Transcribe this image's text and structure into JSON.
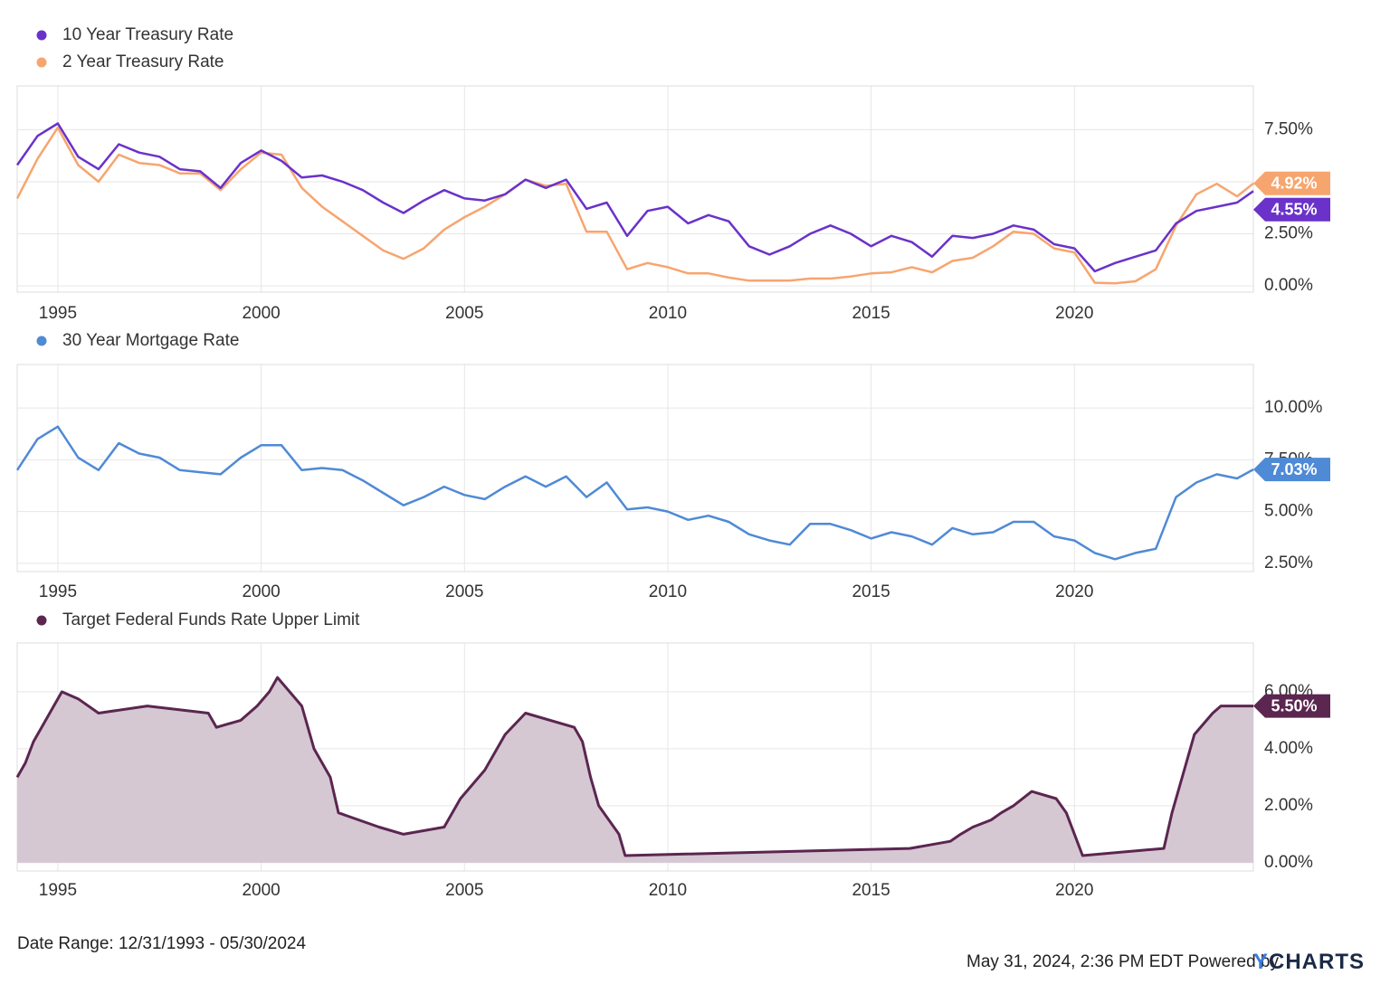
{
  "chart_data": [
    {
      "type": "line",
      "xlim": [
        1994.0,
        2024.4
      ],
      "xticks": [
        1995,
        2000,
        2005,
        2010,
        2015,
        2020
      ],
      "ylim": [
        -0.3,
        9.6
      ],
      "yticks": [
        {
          "value": 0,
          "label": "0.00%"
        },
        {
          "value": 2.5,
          "label": "2.50%"
        },
        {
          "value": 5,
          "label": "5.00%"
        },
        {
          "value": 7.5,
          "label": "7.50%"
        }
      ],
      "grid": true,
      "x": [
        1994.0,
        1994.5,
        1995.0,
        1995.5,
        1996.0,
        1996.5,
        1997.0,
        1997.5,
        1998.0,
        1998.5,
        1999.0,
        1999.5,
        2000.0,
        2000.5,
        2001.0,
        2001.5,
        2002.0,
        2002.5,
        2003.0,
        2003.5,
        2004.0,
        2004.5,
        2005.0,
        2005.5,
        2006.0,
        2006.5,
        2007.0,
        2007.5,
        2008.0,
        2008.5,
        2009.0,
        2009.5,
        2010.0,
        2010.5,
        2011.0,
        2011.5,
        2012.0,
        2012.5,
        2013.0,
        2013.5,
        2014.0,
        2014.5,
        2015.0,
        2015.5,
        2016.0,
        2016.5,
        2017.0,
        2017.5,
        2018.0,
        2018.5,
        2019.0,
        2019.5,
        2020.0,
        2020.5,
        2021.0,
        2021.5,
        2022.0,
        2022.5,
        2023.0,
        2023.5,
        2024.0,
        2024.4
      ],
      "series": [
        {
          "name": "10 Year Treasury Rate",
          "color": "#6a32c9",
          "values": [
            5.8,
            7.2,
            7.8,
            6.2,
            5.6,
            6.8,
            6.4,
            6.2,
            5.6,
            5.5,
            4.7,
            5.9,
            6.5,
            6.0,
            5.2,
            5.3,
            5.0,
            4.6,
            4.0,
            3.5,
            4.1,
            4.6,
            4.2,
            4.1,
            4.4,
            5.1,
            4.7,
            5.1,
            3.7,
            4.0,
            2.4,
            3.6,
            3.8,
            3.0,
            3.4,
            3.1,
            1.9,
            1.5,
            1.9,
            2.5,
            2.9,
            2.5,
            1.9,
            2.4,
            2.1,
            1.4,
            2.4,
            2.3,
            2.5,
            2.9,
            2.7,
            2.0,
            1.8,
            0.7,
            1.1,
            1.4,
            1.7,
            3.0,
            3.6,
            3.8,
            4.0,
            4.55
          ],
          "end_label": {
            "value": 4.55,
            "label": "4.55%"
          }
        },
        {
          "name": "2 Year Treasury Rate",
          "color": "#f7a56e",
          "values": [
            4.2,
            6.1,
            7.6,
            5.8,
            5.0,
            6.3,
            5.9,
            5.8,
            5.4,
            5.4,
            4.6,
            5.6,
            6.4,
            6.3,
            4.7,
            3.8,
            3.1,
            2.4,
            1.7,
            1.3,
            1.8,
            2.7,
            3.3,
            3.8,
            4.4,
            5.1,
            4.8,
            4.9,
            2.6,
            2.6,
            0.8,
            1.1,
            0.9,
            0.6,
            0.6,
            0.4,
            0.25,
            0.25,
            0.25,
            0.35,
            0.35,
            0.45,
            0.6,
            0.65,
            0.9,
            0.65,
            1.2,
            1.35,
            1.9,
            2.6,
            2.5,
            1.8,
            1.6,
            0.15,
            0.12,
            0.22,
            0.8,
            2.9,
            4.4,
            4.9,
            4.3,
            4.92
          ],
          "end_label": {
            "value": 4.92,
            "label": "4.92%"
          }
        }
      ]
    },
    {
      "type": "line",
      "xlim": [
        1994.0,
        2024.4
      ],
      "xticks": [
        1995,
        2000,
        2005,
        2010,
        2015,
        2020
      ],
      "ylim": [
        2.1,
        12.1
      ],
      "yticks": [
        {
          "value": 2.5,
          "label": "2.50%"
        },
        {
          "value": 5,
          "label": "5.00%"
        },
        {
          "value": 7.5,
          "label": "7.50%"
        },
        {
          "value": 10,
          "label": "10.00%"
        }
      ],
      "grid": true,
      "x": [
        1994.0,
        1994.5,
        1995.0,
        1995.5,
        1996.0,
        1996.5,
        1997.0,
        1997.5,
        1998.0,
        1998.5,
        1999.0,
        1999.5,
        2000.0,
        2000.5,
        2001.0,
        2001.5,
        2002.0,
        2002.5,
        2003.0,
        2003.5,
        2004.0,
        2004.5,
        2005.0,
        2005.5,
        2006.0,
        2006.5,
        2007.0,
        2007.5,
        2008.0,
        2008.5,
        2009.0,
        2009.5,
        2010.0,
        2010.5,
        2011.0,
        2011.5,
        2012.0,
        2012.5,
        2013.0,
        2013.5,
        2014.0,
        2014.5,
        2015.0,
        2015.5,
        2016.0,
        2016.5,
        2017.0,
        2017.5,
        2018.0,
        2018.5,
        2019.0,
        2019.5,
        2020.0,
        2020.5,
        2021.0,
        2021.5,
        2022.0,
        2022.5,
        2023.0,
        2023.5,
        2024.0,
        2024.4
      ],
      "series": [
        {
          "name": "30 Year Mortgage Rate",
          "color": "#4f8ad6",
          "values": [
            7.0,
            8.5,
            9.1,
            7.6,
            7.0,
            8.3,
            7.8,
            7.6,
            7.0,
            6.9,
            6.8,
            7.6,
            8.2,
            8.2,
            7.0,
            7.1,
            7.0,
            6.5,
            5.9,
            5.3,
            5.7,
            6.2,
            5.8,
            5.6,
            6.2,
            6.7,
            6.2,
            6.7,
            5.7,
            6.4,
            5.1,
            5.2,
            5.0,
            4.6,
            4.8,
            4.5,
            3.9,
            3.6,
            3.4,
            4.4,
            4.4,
            4.1,
            3.7,
            4.0,
            3.8,
            3.4,
            4.2,
            3.9,
            4.0,
            4.5,
            4.5,
            3.8,
            3.6,
            3.0,
            2.7,
            3.0,
            3.2,
            5.7,
            6.4,
            6.8,
            6.6,
            7.03
          ],
          "end_label": {
            "value": 7.03,
            "label": "7.03%"
          }
        }
      ]
    },
    {
      "type": "area",
      "xlim": [
        1994.0,
        2024.4
      ],
      "xticks": [
        1995,
        2000,
        2005,
        2010,
        2015,
        2020
      ],
      "ylim": [
        -0.29,
        7.71
      ],
      "yticks": [
        {
          "value": 0,
          "label": "0.00%"
        },
        {
          "value": 2,
          "label": "2.00%"
        },
        {
          "value": 4,
          "label": "4.00%"
        },
        {
          "value": 6,
          "label": "6.00%"
        }
      ],
      "grid": true,
      "x": [
        1994.0,
        1994.2,
        1994.4,
        1994.6,
        1994.9,
        1995.1,
        1995.5,
        1996.0,
        1997.2,
        1998.7,
        1998.9,
        1999.5,
        1999.7,
        1999.9,
        2000.2,
        2000.4,
        2001.0,
        2001.3,
        2001.7,
        2001.9,
        2002.9,
        2003.5,
        2004.5,
        2004.9,
        2005.5,
        2006.0,
        2006.5,
        2007.7,
        2007.9,
        2008.1,
        2008.3,
        2008.8,
        2008.95,
        2015.95,
        2016.95,
        2017.2,
        2017.5,
        2017.95,
        2018.2,
        2018.5,
        2018.95,
        2019.55,
        2019.8,
        2020.2,
        2022.2,
        2022.4,
        2022.7,
        2022.95,
        2023.4,
        2023.6,
        2024.4
      ],
      "series": [
        {
          "name": "Target Federal Funds Rate Upper Limit",
          "color": "#5b2650",
          "fill": "#d5c8d3",
          "values": [
            3.0,
            3.5,
            4.25,
            4.75,
            5.5,
            6.0,
            5.75,
            5.25,
            5.5,
            5.25,
            4.75,
            5.0,
            5.25,
            5.5,
            6.0,
            6.5,
            5.5,
            4.0,
            3.0,
            1.75,
            1.25,
            1.0,
            1.25,
            2.25,
            3.25,
            4.5,
            5.25,
            4.75,
            4.25,
            3.0,
            2.0,
            1.0,
            0.25,
            0.5,
            0.75,
            1.0,
            1.25,
            1.5,
            1.75,
            2.0,
            2.5,
            2.25,
            1.75,
            0.25,
            0.5,
            1.75,
            3.25,
            4.5,
            5.25,
            5.5,
            5.5
          ],
          "end_label": {
            "value": 5.5,
            "label": "5.50%"
          }
        }
      ]
    }
  ],
  "footer": {
    "date_range": "Date Range: 12/31/1993 - 05/30/2024",
    "timestamp": "May 31, 2024, 2:36 PM EDT Powered by",
    "logo": "YCHARTS"
  }
}
